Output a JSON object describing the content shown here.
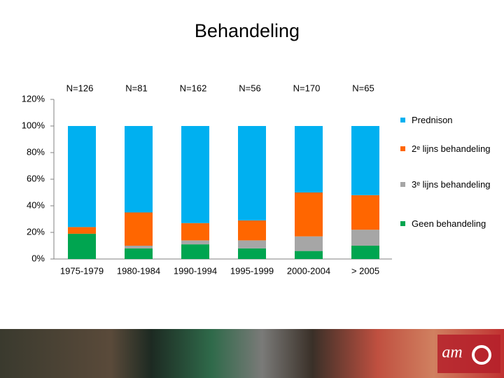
{
  "chart_data": {
    "type": "stacked-bar",
    "title": "Behandeling",
    "categories": [
      "1975-1979",
      "1980-1984",
      "1990-1994",
      "1995-1999",
      "2000-2004",
      "> 2005"
    ],
    "annotations": [
      "N=126",
      "N=81",
      "N=162",
      "N=56",
      "N=170",
      "N=65"
    ],
    "series": [
      {
        "name": "Geen behandeling",
        "color": "#00a550",
        "values": [
          19,
          8,
          11,
          8,
          6,
          10
        ]
      },
      {
        "name": "3ᵉ lijns behandeling",
        "color": "#a6a6a6",
        "values": [
          0,
          2,
          3,
          6,
          11,
          12
        ]
      },
      {
        "name": "2ᵉ lijns behandeling",
        "color": "#ff6600",
        "values": [
          5,
          25,
          13,
          15,
          33,
          26
        ]
      },
      {
        "name": "Prednison",
        "color": "#00b0f0",
        "values": [
          76,
          65,
          73,
          71,
          50,
          52
        ]
      }
    ],
    "ylim": [
      0,
      120
    ],
    "yticks": [
      {
        "value": 0,
        "label": "0%"
      },
      {
        "value": 20,
        "label": "20%"
      },
      {
        "value": 40,
        "label": "40%"
      },
      {
        "value": 60,
        "label": "60%"
      },
      {
        "value": 80,
        "label": "80%"
      },
      {
        "value": 100,
        "label": "100%"
      },
      {
        "value": 120,
        "label": "120%"
      }
    ],
    "logo": "am"
  }
}
